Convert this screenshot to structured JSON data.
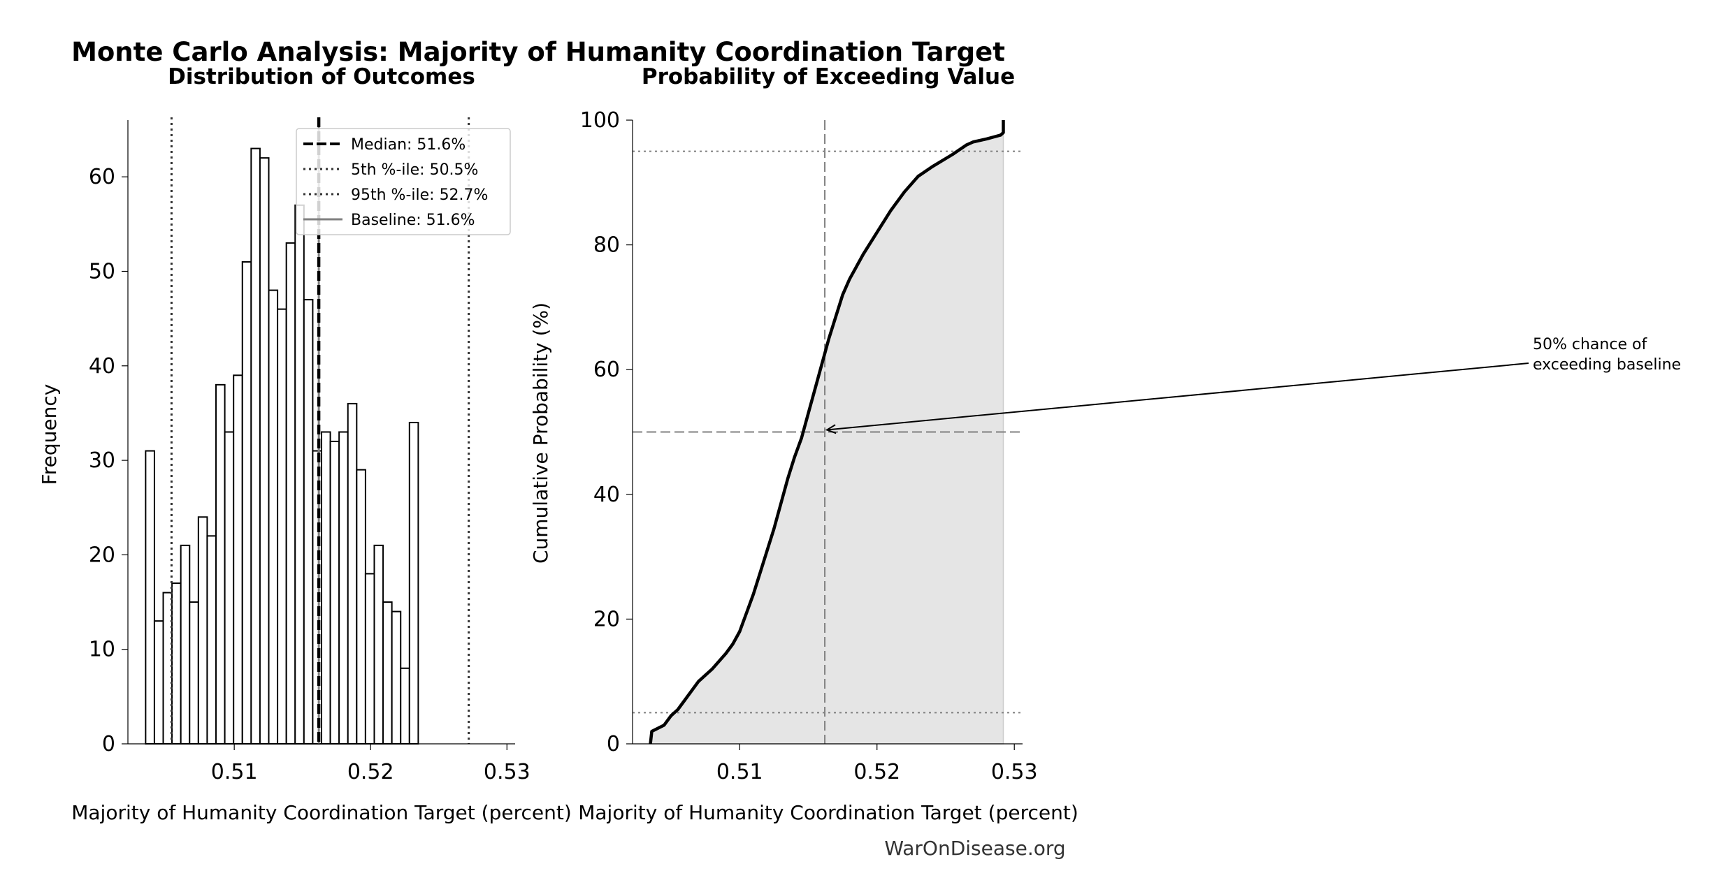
{
  "figure": {
    "title": "Monte Carlo Analysis: Majority of Humanity Coordination Target",
    "footer": "WarOnDisease.org"
  },
  "chart_data": [
    {
      "type": "bar",
      "subtype": "histogram",
      "title": "Distribution of Outcomes",
      "xlabel": "Majority of Humanity Coordination Target (percent)",
      "ylabel": "Frequency",
      "xlim": [
        0.5022,
        0.5306
      ],
      "ylim": [
        0,
        66
      ],
      "xticks": [
        0.51,
        0.52,
        0.53
      ],
      "xtick_labels": [
        "0.51",
        "0.52",
        "0.53"
      ],
      "yticks": [
        0,
        10,
        20,
        30,
        40,
        50,
        60
      ],
      "bin_start": 0.5035,
      "bin_width": 0.000645,
      "values": [
        31,
        13,
        16,
        17,
        21,
        15,
        24,
        22,
        38,
        33,
        39,
        51,
        63,
        62,
        48,
        46,
        53,
        57,
        47,
        31,
        33,
        32,
        33,
        36,
        29,
        18,
        21,
        15,
        14,
        8,
        34
      ],
      "lines": [
        {
          "name": "Median: 51.6%",
          "x": 0.5162,
          "style": "dashed",
          "color": "#000000"
        },
        {
          "name": "5th %-ile: 50.5%",
          "x": 0.5054,
          "style": "dotted",
          "color": "#333333"
        },
        {
          "name": "95th %-ile: 52.7%",
          "x": 0.5272,
          "style": "dotted",
          "color": "#333333"
        },
        {
          "name": "Baseline: 51.6%",
          "x": 0.5162,
          "style": "solid",
          "color": "#808080"
        }
      ],
      "legend_placement": "top-right",
      "grid": false
    },
    {
      "type": "line",
      "subtype": "cdf",
      "title": "Probability of Exceeding Value",
      "xlabel": "Majority of Humanity Coordination Target (percent)",
      "ylabel": "Cumulative Probability (%)",
      "xlim": [
        0.5022,
        0.5306
      ],
      "ylim": [
        0,
        100
      ],
      "xticks": [
        0.51,
        0.52,
        0.53
      ],
      "xtick_labels": [
        "0.51",
        "0.52",
        "0.53"
      ],
      "yticks": [
        0,
        20,
        40,
        60,
        80,
        100
      ],
      "x": [
        0.5035,
        0.5036,
        0.5045,
        0.505,
        0.5055,
        0.506,
        0.507,
        0.508,
        0.509,
        0.5095,
        0.51,
        0.5105,
        0.511,
        0.5115,
        0.512,
        0.5125,
        0.513,
        0.5135,
        0.514,
        0.5145,
        0.515,
        0.5155,
        0.516,
        0.5165,
        0.517,
        0.5175,
        0.518,
        0.5185,
        0.519,
        0.52,
        0.521,
        0.522,
        0.523,
        0.524,
        0.5255,
        0.5265,
        0.527,
        0.528,
        0.5285,
        0.529,
        0.5292,
        0.5292
      ],
      "y": [
        0,
        2,
        3,
        4.5,
        5.5,
        7,
        10,
        12,
        14.5,
        16,
        18,
        21,
        24,
        27.5,
        31,
        34.5,
        38.5,
        42.5,
        46,
        49,
        53,
        57,
        61,
        65,
        68.5,
        72,
        74.5,
        76.5,
        78.5,
        82,
        85.5,
        88.5,
        91,
        92.5,
        94.5,
        96,
        96.5,
        97,
        97.3,
        97.6,
        98,
        100
      ],
      "hlines": [
        {
          "y": 95,
          "style": "dotted",
          "color": "#808080"
        },
        {
          "y": 50,
          "style": "dashed",
          "color": "#808080"
        },
        {
          "y": 5,
          "style": "dotted",
          "color": "#808080"
        }
      ],
      "vlines": [
        {
          "x": 0.5162,
          "style": "dashed",
          "color": "#808080"
        }
      ],
      "fill_color": "#e5e5e5",
      "annotation": {
        "text_lines": [
          "50% chance of",
          "exceeding baseline"
        ],
        "point": {
          "x": 0.5162,
          "y": 50
        }
      },
      "grid": false
    }
  ]
}
